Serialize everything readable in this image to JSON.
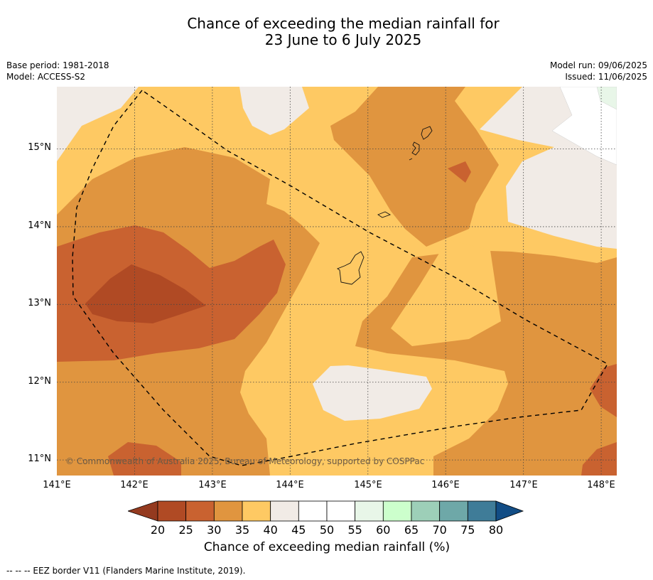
{
  "title_line1": "Chance of exceeding the median rainfall for",
  "title_line2": "23 June to 6 July 2025",
  "meta": {
    "base_period": "Base period: 1981-2018",
    "model": "Model: ACCESS-S2",
    "model_run": "Model run: 09/06/2025",
    "issued": "Issued: 11/06/2025"
  },
  "map": {
    "lon_range": [
      141.0,
      148.2
    ],
    "lat_range": [
      10.8,
      15.8
    ],
    "lat_ticks": [
      "15°N",
      "14°N",
      "13°N",
      "12°N",
      "11°N"
    ],
    "lon_ticks": [
      "141°E",
      "142°E",
      "143°E",
      "144°E",
      "145°E",
      "146°E",
      "147°E",
      "148°E"
    ],
    "copyright": "© Commonwealth of Australia 2025, Bureau of Meteorology, supported by COSPPac",
    "colors": {
      "c20_25": "#b04a24",
      "c25_30": "#c96230",
      "c30_35": "#e0953f",
      "c35_40": "#fec963",
      "c40_45": "#f1ebe6",
      "c45_55": "#ffffff",
      "c55_60": "#e8f6e8"
    }
  },
  "colorbar": {
    "title": "Chance of exceeding median rainfall (%)",
    "ticks": [
      "20",
      "25",
      "30",
      "35",
      "40",
      "45",
      "50",
      "55",
      "60",
      "65",
      "70",
      "75",
      "80"
    ],
    "below_color": "#943a1f",
    "above_color": "#124d85",
    "colors": [
      "#b04a24",
      "#c96230",
      "#e0953f",
      "#fec963",
      "#f1ebe6",
      "#ffffff",
      "#ffffff",
      "#e8f6e8",
      "#ccffcc",
      "#9dcfb8",
      "#6ea8a8",
      "#3f7c98"
    ]
  },
  "footnote": "--  --  -- EEZ border V11 (Flanders Marine Institute, 2019)."
}
